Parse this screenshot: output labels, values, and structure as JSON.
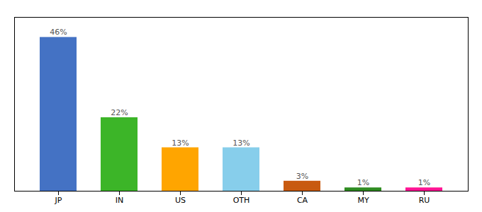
{
  "chart_data": {
    "type": "bar",
    "categories": [
      "JP",
      "IN",
      "US",
      "OTH",
      "CA",
      "MY",
      "RU"
    ],
    "values": [
      46,
      22,
      13,
      13,
      3,
      1,
      1
    ],
    "value_labels": [
      "46%",
      "22%",
      "13%",
      "13%",
      "3%",
      "1%",
      "1%"
    ],
    "colors": [
      "#4472C4",
      "#3CB528",
      "#FFA500",
      "#87CEEB",
      "#C85A10",
      "#2E8B20",
      "#FF1493"
    ],
    "ylim": [
      0,
      52
    ],
    "yticks": [],
    "tick_labels": "x",
    "data_labels": true
  }
}
